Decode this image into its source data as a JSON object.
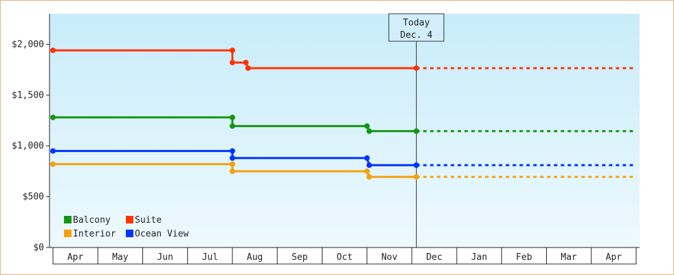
{
  "chart_data": {
    "type": "line",
    "step": true,
    "ylim": [
      0,
      2300
    ],
    "y_ticks": [
      {
        "value": 0,
        "label": "$0"
      },
      {
        "value": 500,
        "label": "$500"
      },
      {
        "value": 1000,
        "label": "$1,000"
      },
      {
        "value": 1500,
        "label": "$1,500"
      },
      {
        "value": 2000,
        "label": "$2,000"
      }
    ],
    "x_categories": [
      "Apr",
      "May",
      "Jun",
      "Jul",
      "Aug",
      "Sep",
      "Oct",
      "Nov",
      "Dec",
      "Jan",
      "Feb",
      "Mar",
      "Apr"
    ],
    "x_range": [
      0,
      13
    ],
    "today": {
      "x": 8.1,
      "label_line1": "Today",
      "label_line2": "Dec. 4"
    },
    "grid": false,
    "legend_position": "bottom-left",
    "series": [
      {
        "name": "Balcony",
        "color": "#149614",
        "points": [
          [
            0,
            1280
          ],
          [
            4.0,
            1280
          ],
          [
            4.0,
            1195
          ],
          [
            7.0,
            1195
          ],
          [
            7.05,
            1145
          ],
          [
            8.1,
            1145
          ]
        ],
        "projection": [
          [
            8.1,
            1145
          ],
          [
            13,
            1145
          ]
        ]
      },
      {
        "name": "Suite",
        "color": "#ff3300",
        "points": [
          [
            0,
            1940
          ],
          [
            4.0,
            1940
          ],
          [
            4.0,
            1820
          ],
          [
            4.3,
            1820
          ],
          [
            4.35,
            1765
          ],
          [
            8.1,
            1765
          ]
        ],
        "projection": [
          [
            8.1,
            1765
          ],
          [
            13,
            1765
          ]
        ]
      },
      {
        "name": "Interior",
        "color": "#f5a10e",
        "points": [
          [
            0,
            820
          ],
          [
            4.0,
            820
          ],
          [
            4.0,
            750
          ],
          [
            7.0,
            750
          ],
          [
            7.05,
            695
          ],
          [
            8.1,
            695
          ]
        ],
        "projection": [
          [
            8.1,
            695
          ],
          [
            13,
            695
          ]
        ]
      },
      {
        "name": "Ocean View",
        "color": "#0033ff",
        "points": [
          [
            0,
            950
          ],
          [
            4.0,
            950
          ],
          [
            4.0,
            880
          ],
          [
            7.0,
            880
          ],
          [
            7.05,
            810
          ],
          [
            8.1,
            810
          ]
        ],
        "projection": [
          [
            8.1,
            810
          ],
          [
            13,
            810
          ]
        ]
      }
    ]
  }
}
